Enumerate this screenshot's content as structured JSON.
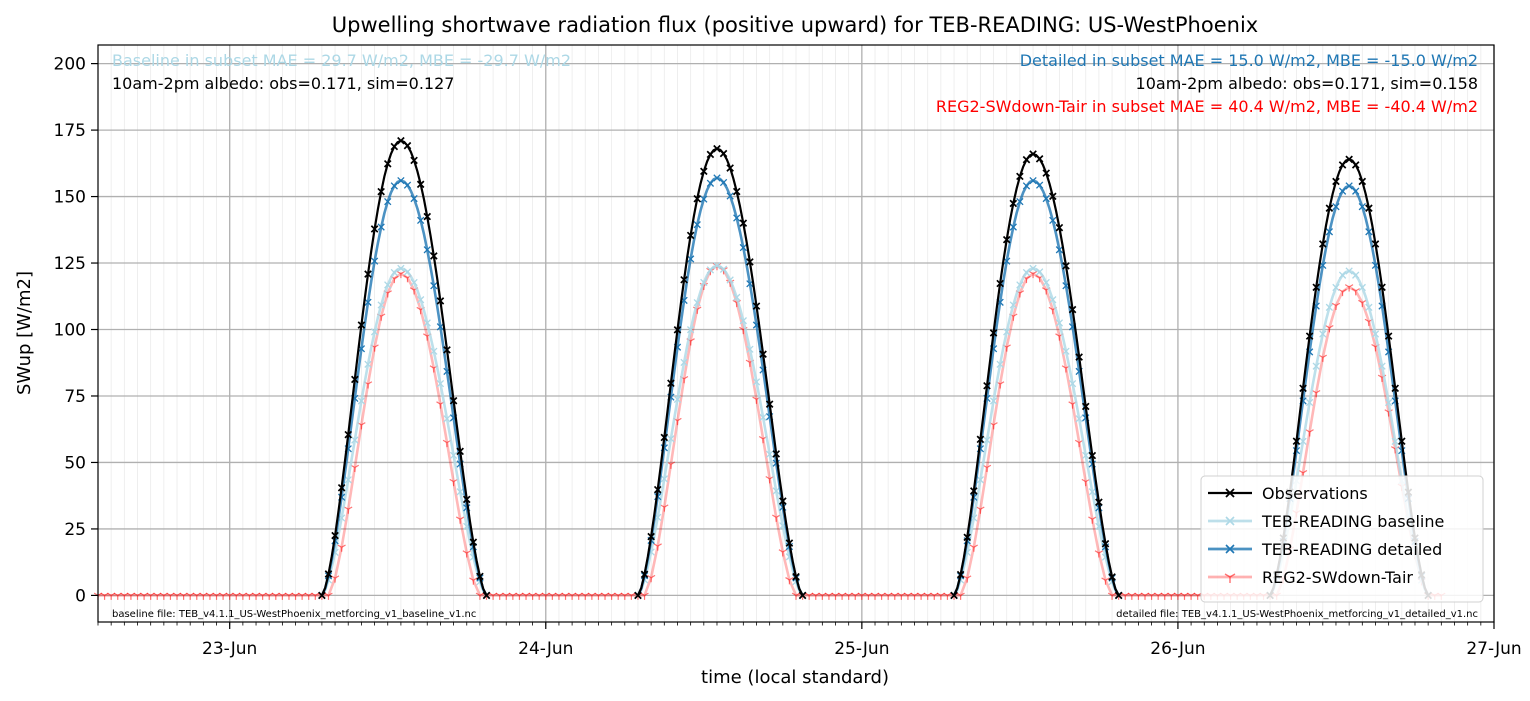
{
  "chart_data": {
    "type": "line",
    "title": "Upwelling shortwave radiation flux (positive upward) for TEB-READING: US-WestPhoenix",
    "xlabel": "time (local standard)",
    "ylabel": "SWup [W/m2]",
    "xlim": [
      "2012-06-22 14:00",
      "2012-06-27 00:00"
    ],
    "ylim": [
      -10,
      207
    ],
    "xtick_labels": [
      "23-Jun",
      "24-Jun",
      "25-Jun",
      "26-Jun",
      "27-Jun"
    ],
    "yticks": [
      0,
      25,
      50,
      75,
      100,
      125,
      150,
      175,
      200
    ],
    "grid": true,
    "legend_position": "lower right",
    "legend_entries": [
      "Observations",
      "TEB-READING baseline",
      "TEB-READING detailed",
      "REG2-SWdown-Tair"
    ],
    "annotations": {
      "baseline_stats": "Baseline in subset MAE = 29.7 W/m2, MBE = -29.7 W/m2",
      "baseline_albedo": "10am-2pm albedo: obs=0.171, sim=0.127",
      "detailed_stats": "Detailed in subset MAE = 15.0 W/m2, MBE = -15.0 W/m2",
      "detailed_albedo": "10am-2pm albedo: obs=0.171, sim=0.158",
      "reg2_stats": "REG2-SWdown-Tair in subset MAE = 40.4 W/m2, MBE = -40.4 W/m2",
      "baseline_file": "baseline file: TEB_v4.1.1_US-WestPhoenix_metforcing_v1_baseline_v1.nc",
      "detailed_file": "detailed file: TEB_v4.1.1_US-WestPhoenix_metforcing_v1_detailed_v1.nc"
    },
    "series": [
      {
        "name": "Observations",
        "color": "#000000",
        "marker": "x",
        "days": [
          {
            "day": "2012-06-23",
            "start": "07:00",
            "end": "19:30",
            "peak": 171,
            "peak_time": "13:00"
          },
          {
            "day": "2012-06-24",
            "start": "07:00",
            "end": "19:30",
            "peak": 168,
            "peak_time": "13:00"
          },
          {
            "day": "2012-06-25",
            "start": "07:00",
            "end": "19:30",
            "peak": 166,
            "peak_time": "13:00"
          },
          {
            "day": "2012-06-26",
            "start": "07:00",
            "end": "19:00",
            "peak": 164,
            "peak_time": "13:00"
          }
        ]
      },
      {
        "name": "TEB-READING baseline",
        "color": "#add8e6",
        "marker": "x",
        "days": [
          {
            "day": "2012-06-23",
            "start": "07:00",
            "end": "19:30",
            "peak": 123,
            "peak_time": "13:00"
          },
          {
            "day": "2012-06-24",
            "start": "07:00",
            "end": "19:30",
            "peak": 124,
            "peak_time": "13:00"
          },
          {
            "day": "2012-06-25",
            "start": "07:00",
            "end": "19:30",
            "peak": 123,
            "peak_time": "13:00"
          },
          {
            "day": "2012-06-26",
            "start": "07:00",
            "end": "19:00",
            "peak": 122,
            "peak_time": "13:00"
          }
        ]
      },
      {
        "name": "TEB-READING detailed",
        "color": "#1f77b4",
        "marker": "x",
        "days": [
          {
            "day": "2012-06-23",
            "start": "07:00",
            "end": "19:30",
            "peak": 156,
            "peak_time": "13:00"
          },
          {
            "day": "2012-06-24",
            "start": "07:00",
            "end": "19:30",
            "peak": 157,
            "peak_time": "13:00"
          },
          {
            "day": "2012-06-25",
            "start": "07:00",
            "end": "19:30",
            "peak": 156,
            "peak_time": "13:00"
          },
          {
            "day": "2012-06-26",
            "start": "07:00",
            "end": "19:00",
            "peak": 154,
            "peak_time": "13:00"
          }
        ]
      },
      {
        "name": "REG2-SWdown-Tair",
        "color": "#ff0000",
        "marker": "1",
        "days": [
          {
            "day": "2012-06-23",
            "start": "07:30",
            "end": "19:00",
            "peak": 121,
            "peak_time": "13:00"
          },
          {
            "day": "2012-06-24",
            "start": "07:30",
            "end": "19:00",
            "peak": 124,
            "peak_time": "13:00"
          },
          {
            "day": "2012-06-25",
            "start": "07:30",
            "end": "19:00",
            "peak": 121,
            "peak_time": "13:00"
          },
          {
            "day": "2012-06-26",
            "start": "07:30",
            "end": "19:00",
            "peak": 116,
            "peak_time": "13:00"
          }
        ],
        "night_value": 0,
        "range": [
          "2012-06-22 14:00",
          "2012-06-27 00:00"
        ]
      }
    ]
  }
}
